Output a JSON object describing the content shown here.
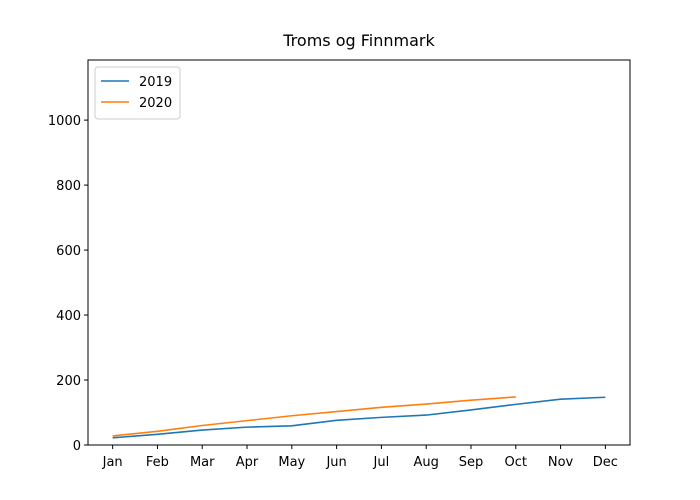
{
  "chart_data": {
    "type": "line",
    "title": "Troms og Finnmark",
    "categories": [
      "Jan",
      "Feb",
      "Mar",
      "Apr",
      "May",
      "Jun",
      "Jul",
      "Aug",
      "Sep",
      "Oct",
      "Nov",
      "Dec"
    ],
    "series": [
      {
        "name": "2019",
        "color": "#1f77b4",
        "values": [
          22,
          33,
          46,
          55,
          59,
          76,
          85,
          92,
          108,
          125,
          141,
          147
        ]
      },
      {
        "name": "2020",
        "color": "#ff7f0e",
        "values": [
          28,
          42,
          60,
          75,
          90,
          103,
          116,
          126,
          138,
          148,
          null,
          null
        ]
      }
    ],
    "ylim": [
      0,
      1185
    ],
    "yticks": [
      0,
      200,
      400,
      600,
      800,
      1000
    ],
    "legend": "upper left",
    "grid": false
  }
}
